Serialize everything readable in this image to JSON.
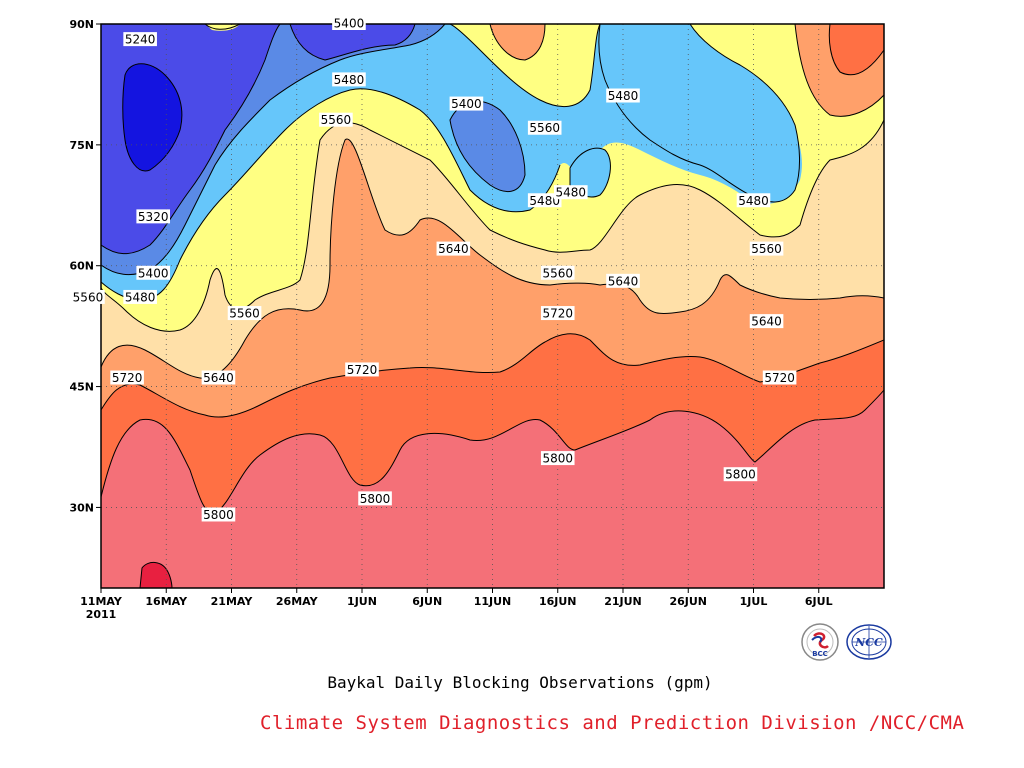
{
  "chart_data": {
    "type": "heatmap",
    "title": "",
    "caption": "Baykal Daily Blocking Observations (gpm)",
    "x_ticks": [
      "11MAY",
      "16MAY",
      "21MAY",
      "26MAY",
      "1JUN",
      "6JUN",
      "11JUN",
      "16JUN",
      "21JUN",
      "26JUN",
      "1JUL",
      "6JUL"
    ],
    "x_year_label": "2011",
    "y_ticks": [
      "90N",
      "75N",
      "60N",
      "45N",
      "30N"
    ],
    "xlim": [
      "2011-05-11",
      "2011-07-10"
    ],
    "ylim": [
      20,
      90
    ],
    "contour_levels": [
      5240,
      5320,
      5400,
      5480,
      5560,
      5640,
      5720,
      5800,
      5880
    ],
    "contour_labels": [
      {
        "value": "5240",
        "date": "2011-05-14",
        "lat": 88
      },
      {
        "value": "5320",
        "date": "2011-05-15",
        "lat": 66
      },
      {
        "value": "5400",
        "date": "2011-05-15",
        "lat": 59
      },
      {
        "value": "5480",
        "date": "2011-05-14",
        "lat": 56
      },
      {
        "value": "5560",
        "date": "2011-05-10",
        "lat": 56
      },
      {
        "value": "5560",
        "date": "2011-05-22",
        "lat": 54
      },
      {
        "value": "5640",
        "date": "2011-05-20",
        "lat": 46
      },
      {
        "value": "5720",
        "date": "2011-05-13",
        "lat": 46
      },
      {
        "value": "5800",
        "date": "2011-05-20",
        "lat": 29
      },
      {
        "value": "5400",
        "date": "2011-05-30",
        "lat": 90
      },
      {
        "value": "5480",
        "date": "2011-05-30",
        "lat": 83
      },
      {
        "value": "5560",
        "date": "2011-05-29",
        "lat": 78
      },
      {
        "value": "5720",
        "date": "2011-05-31",
        "lat": 47
      },
      {
        "value": "5800",
        "date": "2011-06-01",
        "lat": 31
      },
      {
        "value": "5400",
        "date": "2011-06-08",
        "lat": 80
      },
      {
        "value": "5640",
        "date": "2011-06-07",
        "lat": 62
      },
      {
        "value": "5560",
        "date": "2011-06-14",
        "lat": 77
      },
      {
        "value": "5480",
        "date": "2011-06-14",
        "lat": 68
      },
      {
        "value": "5480",
        "date": "2011-06-16",
        "lat": 69
      },
      {
        "value": "5560",
        "date": "2011-06-15",
        "lat": 59
      },
      {
        "value": "5720",
        "date": "2011-06-15",
        "lat": 54
      },
      {
        "value": "5800",
        "date": "2011-06-15",
        "lat": 36
      },
      {
        "value": "5480",
        "date": "2011-06-20",
        "lat": 81
      },
      {
        "value": "5640",
        "date": "2011-06-20",
        "lat": 58
      },
      {
        "value": "5480",
        "date": "2011-06-30",
        "lat": 68
      },
      {
        "value": "5560",
        "date": "2011-07-01",
        "lat": 62
      },
      {
        "value": "5800",
        "date": "2011-06-29",
        "lat": 34
      },
      {
        "value": "5640",
        "date": "2011-07-01",
        "lat": 53
      },
      {
        "value": "5720",
        "date": "2011-07-02",
        "lat": 46
      }
    ],
    "grid": true,
    "colors": {
      "5240": "#1414e0",
      "5320": "#4b4be8",
      "5400": "#5a8ae6",
      "5480": "#66c6fa",
      "5560": "#ffff82",
      "5640": "#ffe0a8",
      "5720": "#ffa06a",
      "5800": "#ff7044",
      "5880": "#f47078",
      "max": "#e82040"
    }
  },
  "footer": {
    "credit": "Climate System Diagnostics and Prediction Division /NCC/CMA",
    "logo_left_text": "BCC",
    "logo_right_text": "NCC"
  }
}
